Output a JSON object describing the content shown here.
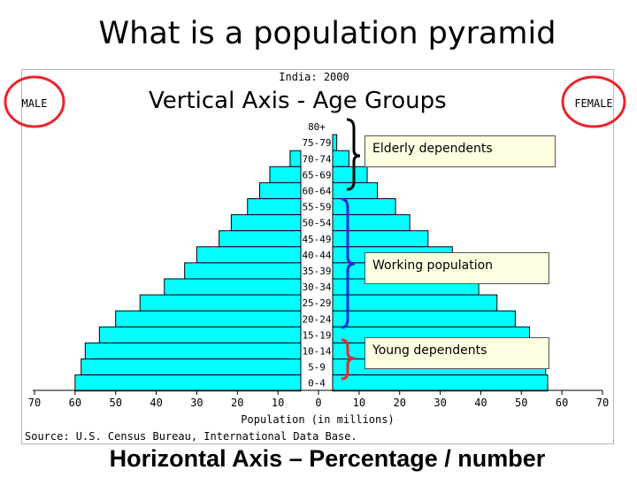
{
  "slide_title": "What is a population pyramid",
  "vertical_axis_annotation": "Vertical Axis - Age Groups",
  "horizontal_axis_annotation": "Horizontal Axis – Percentage / number",
  "callouts": {
    "elderly": "Elderly dependents",
    "working": "Working population",
    "young": "Young dependents"
  },
  "colors": {
    "bar_fill": "#00ffff",
    "bar_stroke": "#000000",
    "highlight_circle": "#e8262c",
    "bracket": "#1f2ad6",
    "callout_fill": "#fefee0"
  },
  "chart_data": {
    "type": "bar",
    "orientation": "horizontal-pyramid",
    "title": "India: 2000",
    "male_label": "MALE",
    "female_label": "FEMALE",
    "xlabel": "Population (in millions)",
    "source": "Source: U.S. Census Bureau, International Data Base.",
    "xlim": [
      -70,
      70
    ],
    "x_ticks": [
      -70,
      -60,
      -50,
      -40,
      -30,
      -20,
      -10,
      0,
      10,
      20,
      30,
      40,
      50,
      60,
      70
    ],
    "x_tick_labels": [
      "70",
      "60",
      "50",
      "40",
      "30",
      "20",
      "10",
      "0",
      "10",
      "20",
      "30",
      "40",
      "50",
      "60",
      "70"
    ],
    "categories": [
      "80+",
      "75-79",
      "70-74",
      "65-69",
      "60-64",
      "55-59",
      "50-54",
      "45-49",
      "40-44",
      "35-39",
      "30-34",
      "25-29",
      "20-24",
      "15-19",
      "10-14",
      "5-9",
      "0-4"
    ],
    "series": [
      {
        "name": "MALE",
        "values": [
          1.5,
          4,
          7,
          12,
          14.5,
          17.5,
          21.5,
          24.5,
          30,
          33,
          38,
          44,
          50,
          54,
          57.5,
          58.5,
          60
        ]
      },
      {
        "name": "FEMALE",
        "values": [
          1.5,
          4.5,
          7.5,
          12,
          14.5,
          19,
          22.5,
          27,
          33,
          37,
          39.5,
          44,
          48.5,
          52,
          54.5,
          56,
          56.5
        ]
      }
    ]
  }
}
